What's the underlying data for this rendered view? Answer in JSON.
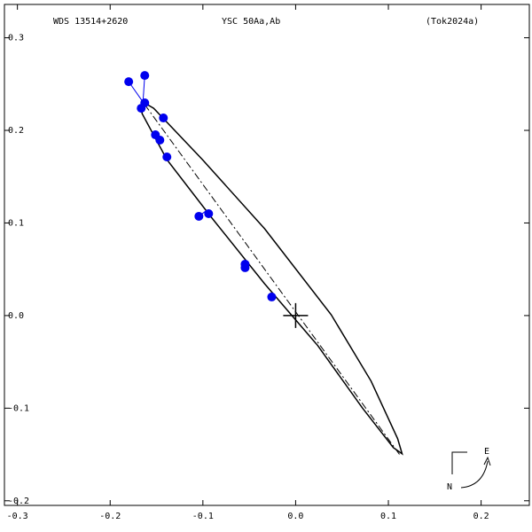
{
  "chart_data": {
    "type": "scatter",
    "title": "WDS 13514+2620",
    "subtitle": "YSC  50Aa,Ab",
    "reference": "(Tok2024a)",
    "x": [
      -0.18,
      -0.1627,
      -0.1627,
      -0.1665,
      -0.1426,
      -0.1512,
      -0.1464,
      -0.1388,
      -0.1043,
      -0.0938,
      -0.0545,
      -0.0545,
      -0.0258
    ],
    "series": [
      {
        "color": "#0000ee",
        "values": [
          0.2526,
          0.2593,
          0.2297,
          0.2239,
          0.2134,
          0.1952,
          0.1895,
          0.1713,
          0.1072,
          0.11,
          0.0555,
          0.0517,
          0.0201
        ]
      }
    ],
    "orbit": {
      "x": [
        -0.1646,
        -0.1531,
        -0.1005,
        -0.0335,
        0.0383,
        0.0813,
        0.11,
        0.1148,
        0.1053,
        0.0718,
        0.0239,
        -0.0335,
        -0.0909,
        -0.1388,
        -0.1656
      ],
      "y": [
        0.2306,
        0.2239,
        0.1684,
        0.0938,
        0.001,
        -0.0708,
        -0.133,
        -0.1493,
        -0.1426,
        -0.0995,
        -0.0325,
        0.0344,
        0.1062,
        0.1684,
        0.2182
      ]
    },
    "line_of_nodes": {
      "x": [
        -0.1627,
        0.1129
      ],
      "y": [
        0.2278,
        -0.1512
      ]
    },
    "xlim": [
      -0.314,
      0.252
    ],
    "ylim": [
      -0.205,
      0.336
    ],
    "xticks": [
      -0.3,
      -0.2,
      -0.1,
      {
        "value": 0,
        "label": "0.0"
      },
      0.1,
      0.2
    ],
    "yticks": [
      -0.2,
      -0.1,
      {
        "value": 0,
        "label": "0.0"
      },
      0.1,
      0.2,
      0.3
    ],
    "compass": {
      "east": "E",
      "north": "N"
    }
  }
}
